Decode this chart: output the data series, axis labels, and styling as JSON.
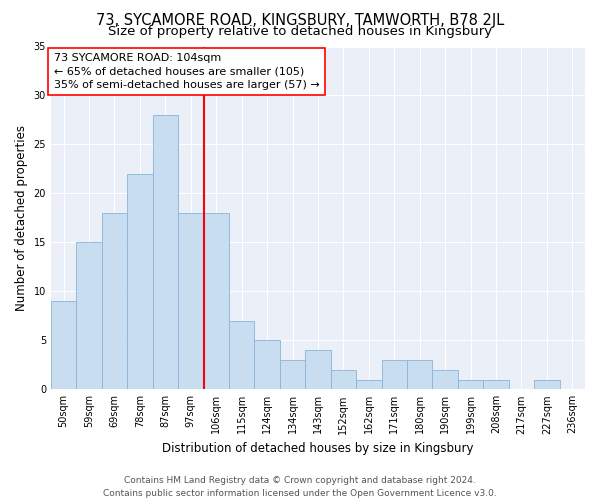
{
  "title": "73, SYCAMORE ROAD, KINGSBURY, TAMWORTH, B78 2JL",
  "subtitle": "Size of property relative to detached houses in Kingsbury",
  "xlabel": "Distribution of detached houses by size in Kingsbury",
  "ylabel": "Number of detached properties",
  "bar_color": "#c9ddf0",
  "bar_edge_color": "#8ab4d8",
  "categories": [
    "50sqm",
    "59sqm",
    "69sqm",
    "78sqm",
    "87sqm",
    "97sqm",
    "106sqm",
    "115sqm",
    "124sqm",
    "134sqm",
    "143sqm",
    "152sqm",
    "162sqm",
    "171sqm",
    "180sqm",
    "190sqm",
    "199sqm",
    "208sqm",
    "217sqm",
    "227sqm",
    "236sqm"
  ],
  "values": [
    9,
    15,
    18,
    22,
    28,
    18,
    18,
    7,
    5,
    3,
    4,
    2,
    1,
    3,
    3,
    2,
    1,
    1,
    0,
    1,
    0
  ],
  "red_line_index": 5.5,
  "annotation_line1": "73 SYCAMORE ROAD: 104sqm",
  "annotation_line2": "← 65% of detached houses are smaller (105)",
  "annotation_line3": "35% of semi-detached houses are larger (57) →",
  "ylim": [
    0,
    35
  ],
  "yticks": [
    0,
    5,
    10,
    15,
    20,
    25,
    30,
    35
  ],
  "footer_line1": "Contains HM Land Registry data © Crown copyright and database right 2024.",
  "footer_line2": "Contains public sector information licensed under the Open Government Licence v3.0.",
  "background_color": "#eaeff8",
  "grid_color": "#ffffff",
  "fig_background": "#ffffff",
  "title_fontsize": 10.5,
  "subtitle_fontsize": 9.5,
  "xlabel_fontsize": 8.5,
  "ylabel_fontsize": 8.5,
  "tick_fontsize": 7,
  "annotation_fontsize": 8,
  "footer_fontsize": 6.5
}
